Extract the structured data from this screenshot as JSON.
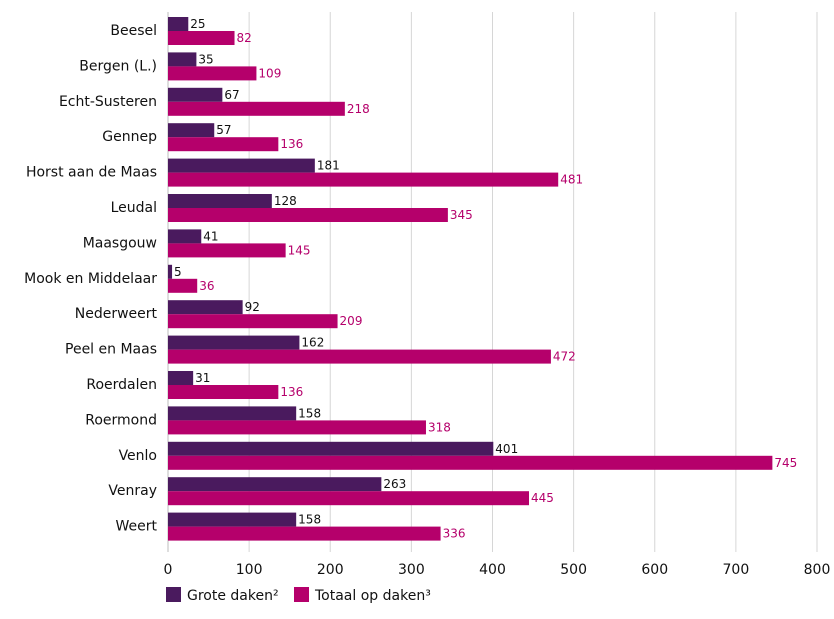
{
  "chart_data": {
    "type": "bar",
    "orientation": "horizontal",
    "categories": [
      "Beesel",
      "Bergen (L.)",
      "Echt-Susteren",
      "Gennep",
      "Horst aan de Maas",
      "Leudal",
      "Maasgouw",
      "Mook en Middelaar",
      "Nederweert",
      "Peel en Maas",
      "Roerdalen",
      "Roermond",
      "Venlo",
      "Venray",
      "Weert"
    ],
    "series": [
      {
        "name": "Grote daken²",
        "color": "#4a1a5e",
        "label_color": "#111111",
        "values": [
          25,
          35,
          67,
          57,
          181,
          128,
          41,
          5,
          92,
          162,
          31,
          158,
          401,
          263,
          158
        ]
      },
      {
        "name": "Totaal op daken³",
        "color": "#b5006b",
        "label_color": "#b5006b",
        "values": [
          82,
          109,
          218,
          136,
          481,
          345,
          145,
          36,
          209,
          472,
          136,
          318,
          745,
          445,
          336
        ]
      }
    ],
    "xlim": [
      0,
      800
    ],
    "xticks": [
      0,
      100,
      200,
      300,
      400,
      500,
      600,
      700,
      800
    ],
    "grid": true,
    "legend": "bottom-left",
    "title": "",
    "xlabel": "",
    "ylabel": ""
  }
}
